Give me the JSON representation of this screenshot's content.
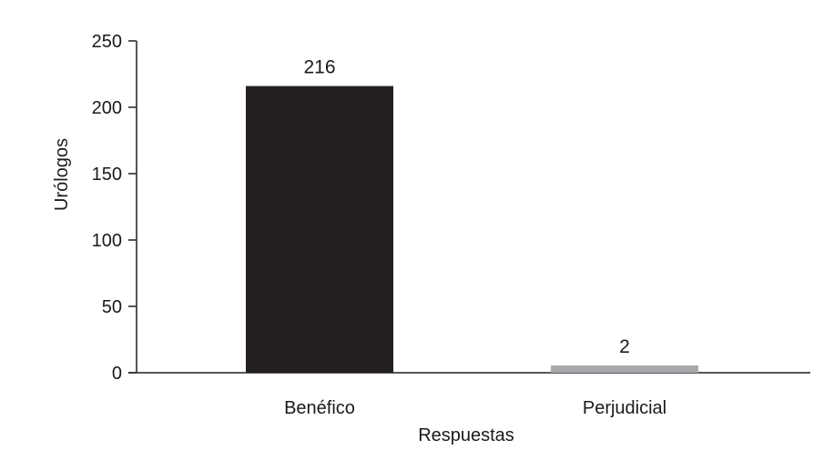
{
  "chart_data": {
    "type": "bar",
    "categories": [
      "Benéfico",
      "Perjudicial"
    ],
    "values": [
      216,
      2
    ],
    "data_labels": [
      "216",
      "2"
    ],
    "xlabel": "Respuestas",
    "ylabel": "Urólogos",
    "ylim": [
      0,
      250
    ],
    "yticks": [
      0,
      50,
      100,
      150,
      200,
      250
    ],
    "ytick_labels": [
      "0",
      "50",
      "100",
      "150",
      "200",
      "250"
    ],
    "grid": false,
    "legend": "none",
    "colors": [
      "#231f20",
      "#a7a9ac"
    ]
  }
}
